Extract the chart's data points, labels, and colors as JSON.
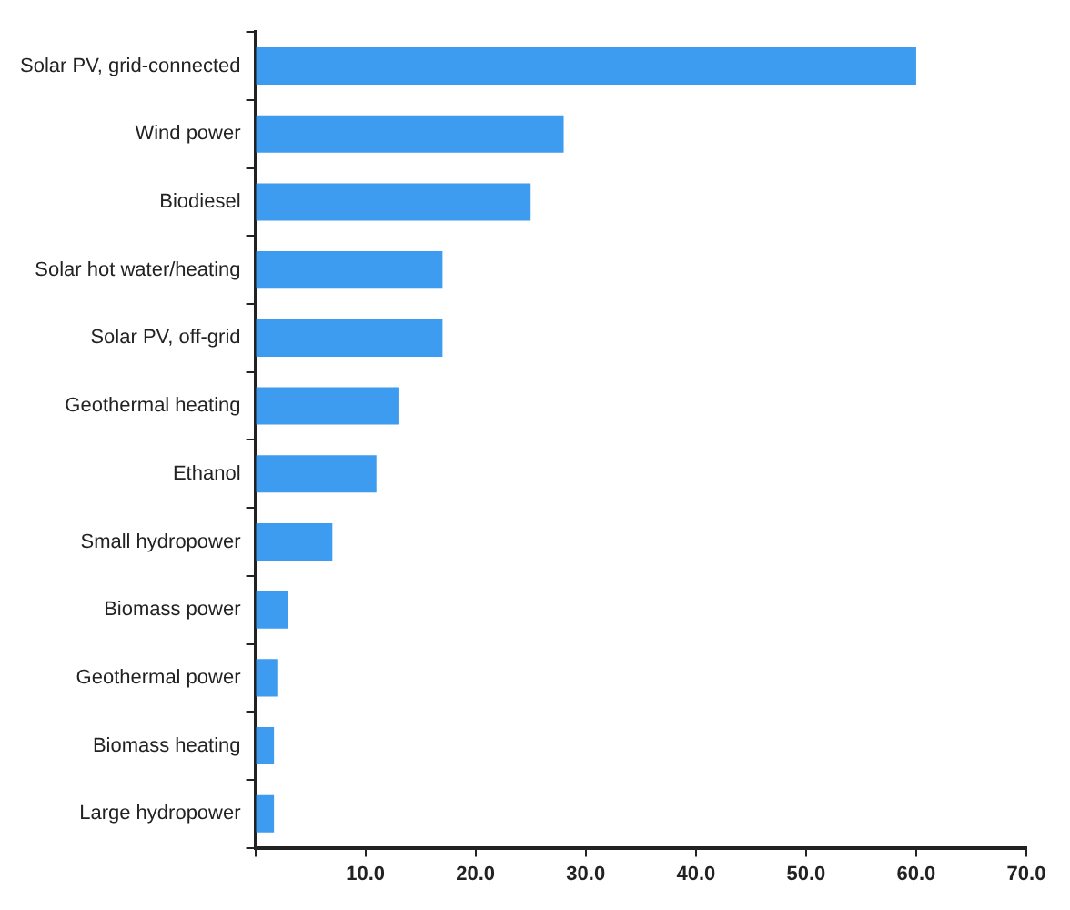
{
  "chart_data": {
    "type": "bar",
    "orientation": "horizontal",
    "categories": [
      "Solar PV, grid-connected",
      "Wind power",
      "Biodiesel",
      "Solar hot water/heating",
      "Solar PV, off-grid",
      "Geothermal heating",
      "Ethanol",
      "Small hydropower",
      "Biomass power",
      "Geothermal power",
      "Biomass heating",
      "Large hydropower"
    ],
    "values": [
      60,
      28,
      25,
      17,
      17,
      13,
      11,
      7,
      3,
      2,
      1.7,
      1.7
    ],
    "color": "#3d9bf0",
    "xlim": [
      0,
      70
    ],
    "xticks": [
      {
        "value": 0,
        "label": null
      },
      {
        "value": 10,
        "label": "10.0"
      },
      {
        "value": 20,
        "label": "20.0"
      },
      {
        "value": 30,
        "label": "30.0"
      },
      {
        "value": 40,
        "label": "40.0"
      },
      {
        "value": 50,
        "label": "50.0"
      },
      {
        "value": 60,
        "label": "60.0"
      },
      {
        "value": 70,
        "label": "70.0"
      }
    ],
    "grid": false,
    "legend": false
  }
}
